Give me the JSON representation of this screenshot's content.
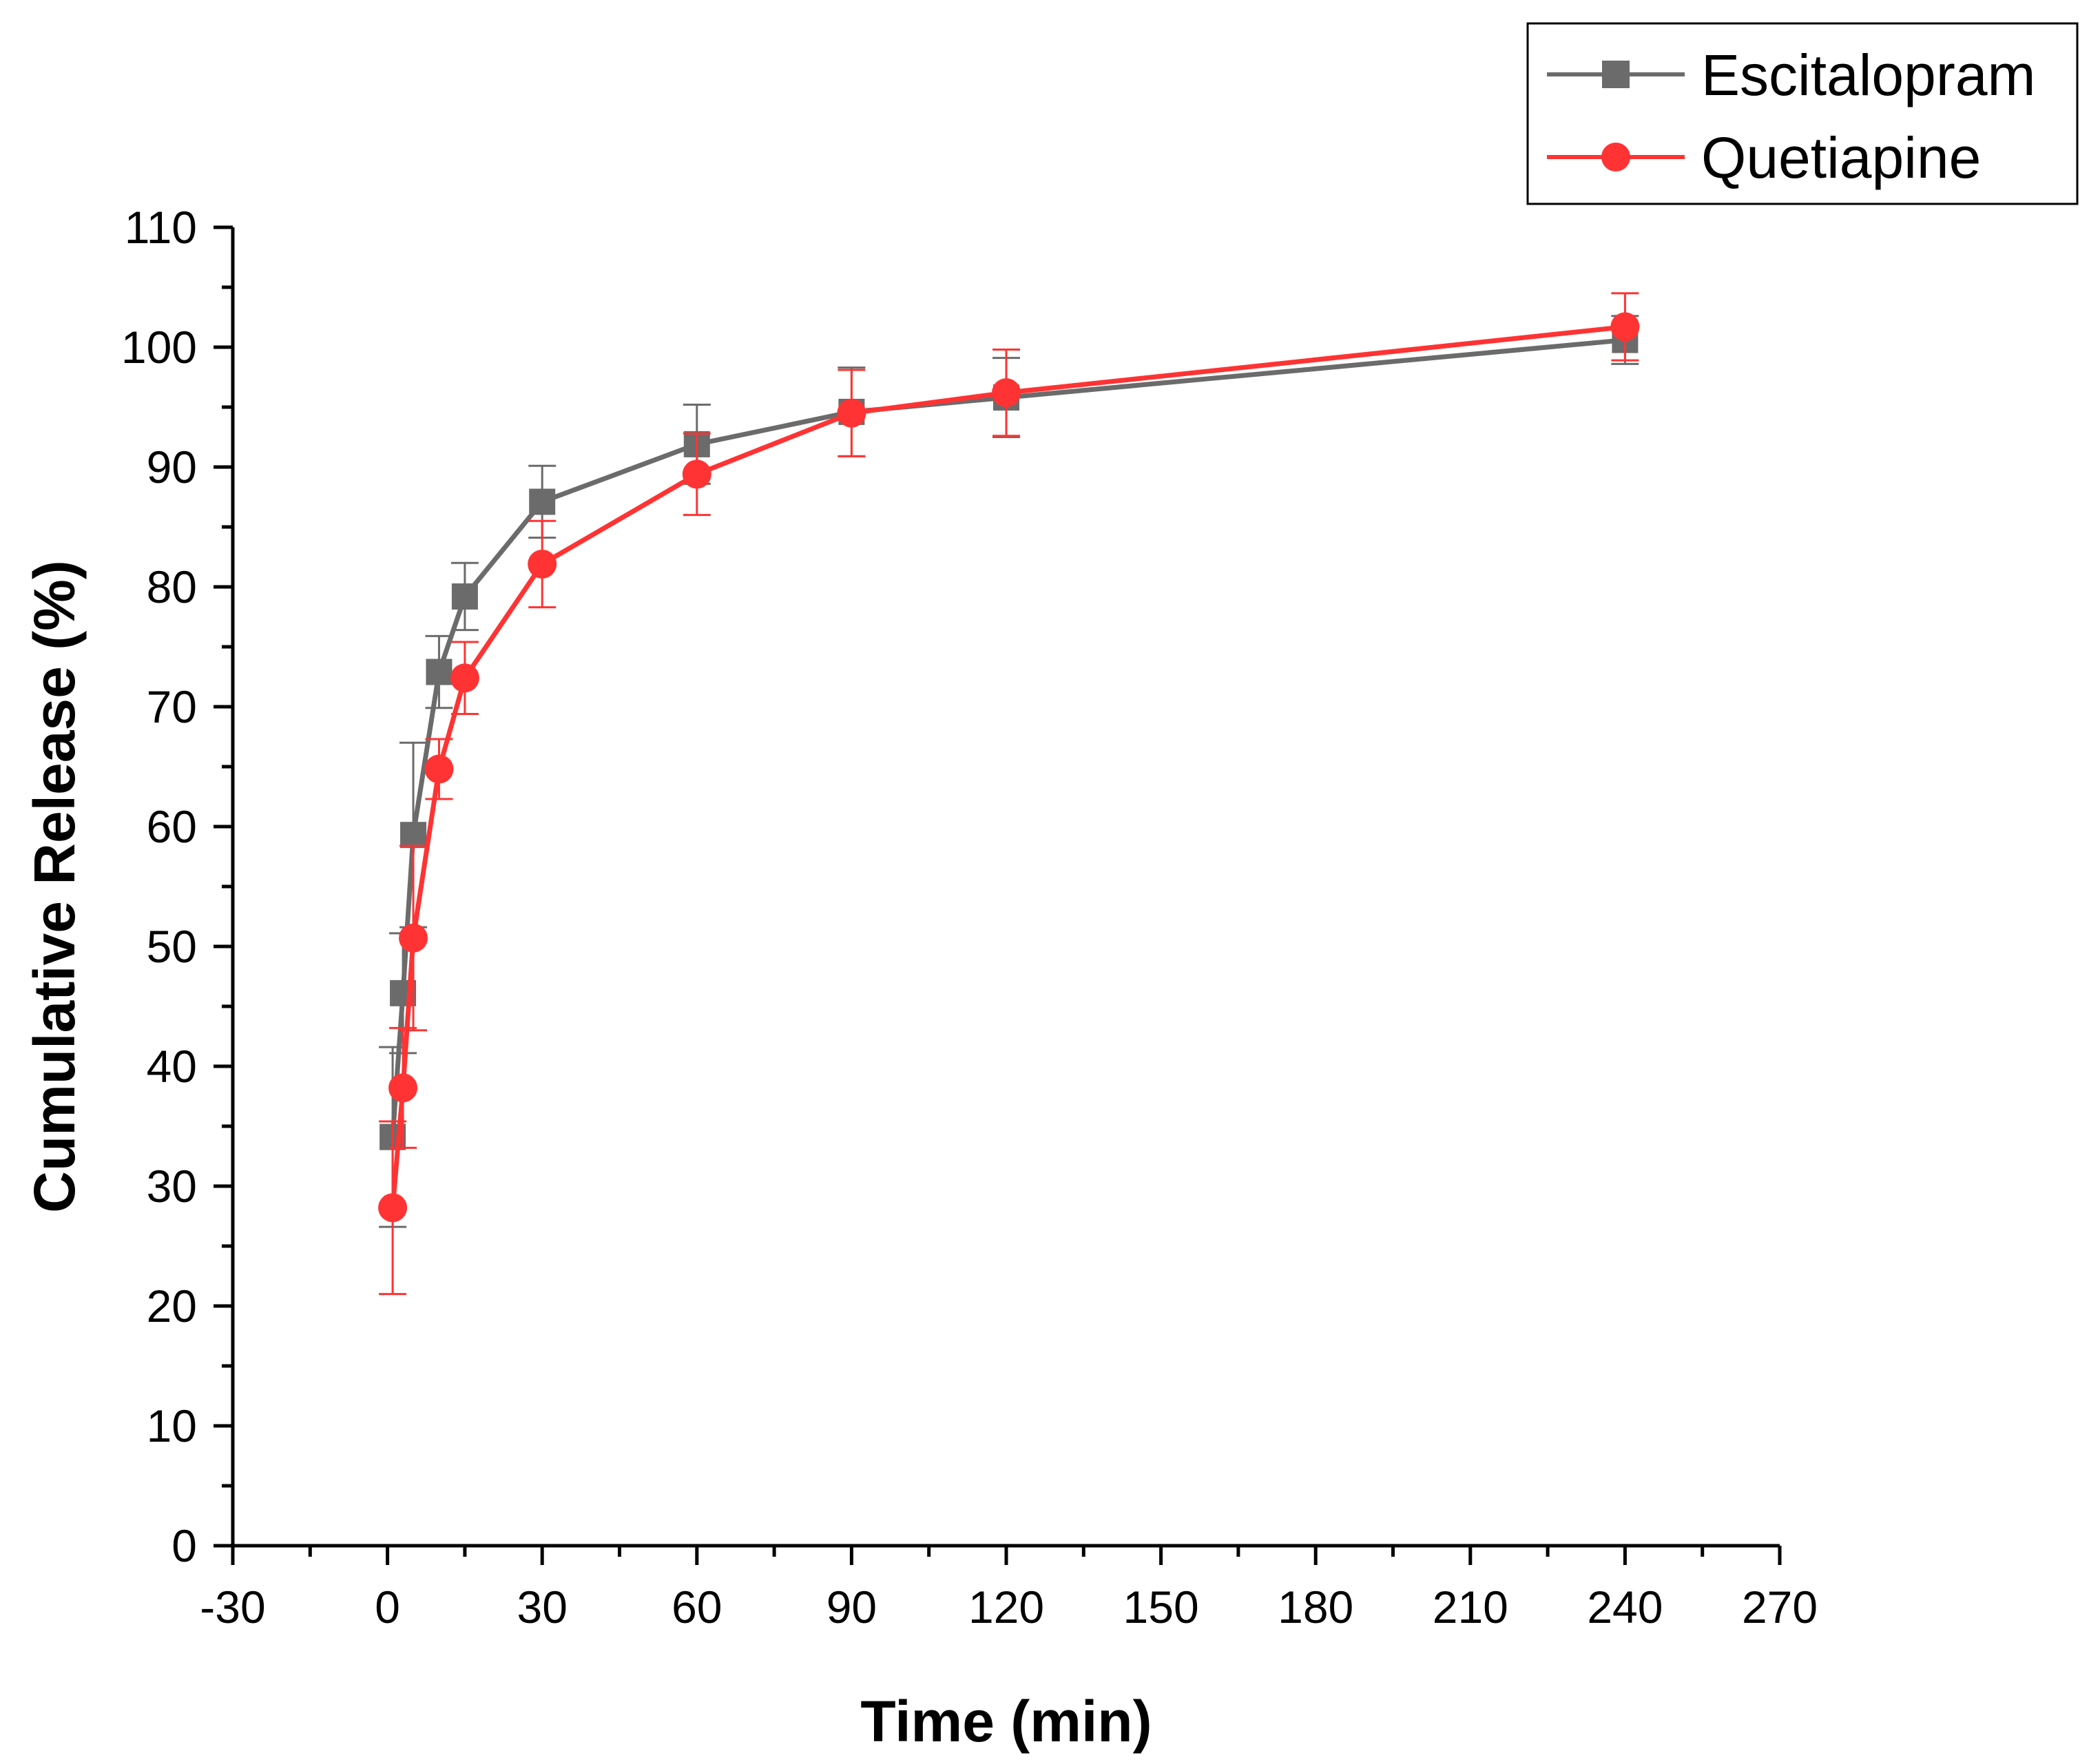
{
  "chart_data": {
    "type": "line",
    "title": "",
    "xlabel": "Time (min)",
    "ylabel": "Cumulative Release (%)",
    "xlim": [
      -30,
      270
    ],
    "ylim": [
      0,
      110
    ],
    "x_ticks": [
      -30,
      0,
      30,
      60,
      90,
      120,
      150,
      180,
      210,
      240,
      270
    ],
    "y_ticks": [
      0,
      10,
      20,
      30,
      40,
      50,
      60,
      70,
      80,
      90,
      100,
      110
    ],
    "x_tick_labels": [
      "-30",
      "0",
      "30",
      "60",
      "90",
      "120",
      "150",
      "180",
      "210",
      "240",
      "270"
    ],
    "y_tick_labels": [
      "0",
      "10",
      "20",
      "30",
      "40",
      "50",
      "60",
      "70",
      "80",
      "90",
      "100",
      "110"
    ],
    "grid": false,
    "legend_position": "top-right",
    "series": [
      {
        "name": "Escitalopram",
        "color": "#6b6b6b",
        "marker": "square",
        "x": [
          1,
          3,
          5,
          10,
          15,
          30,
          60,
          90,
          120,
          240
        ],
        "y": [
          34.1,
          46.1,
          59.3,
          72.9,
          79.2,
          87.1,
          91.9,
          94.6,
          95.8,
          100.6
        ],
        "error": [
          7.5,
          5.0,
          7.7,
          3.0,
          2.8,
          3.0,
          3.3,
          3.7,
          3.3,
          2.0
        ]
      },
      {
        "name": "Quetiapine",
        "color": "#ff3333",
        "marker": "circle",
        "x": [
          1,
          3,
          5,
          10,
          15,
          30,
          60,
          90,
          120,
          240
        ],
        "y": [
          28.2,
          38.2,
          50.7,
          64.8,
          72.4,
          81.9,
          89.4,
          94.5,
          96.2,
          101.7
        ],
        "error": [
          7.2,
          5.0,
          7.7,
          2.5,
          3.0,
          3.6,
          3.4,
          3.6,
          3.6,
          2.8
        ]
      }
    ]
  }
}
